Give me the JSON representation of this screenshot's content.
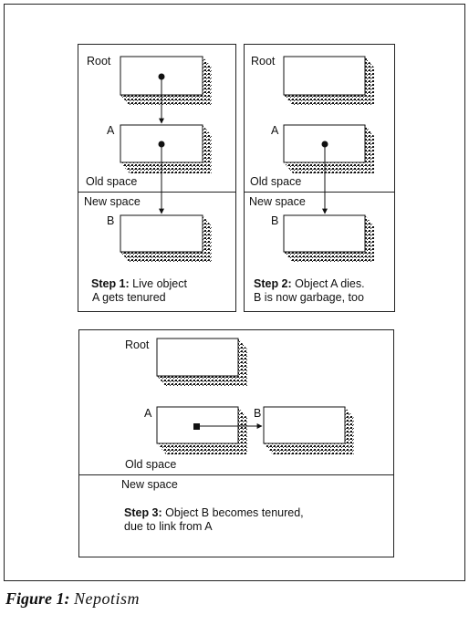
{
  "panels": [
    {
      "step_label": "Step 1:",
      "step_text_line1": "Live object",
      "step_text_line2": "A  gets tenured",
      "labels": {
        "root": "Root",
        "a": "A",
        "b": "B",
        "old_space": "Old space",
        "new_space": "New space"
      }
    },
    {
      "step_label": "Step 2:",
      "step_text_line1": "Object A dies.",
      "step_text_line2": "B is now garbage, too",
      "labels": {
        "root": "Root",
        "a": "A",
        "b": "B",
        "old_space": "Old space",
        "new_space": "New space"
      }
    },
    {
      "step_label": "Step 3:",
      "step_text_line1": "Object B becomes tenured,",
      "step_text_line2": "due to link from A",
      "labels": {
        "root": "Root",
        "a": "A",
        "b": "B",
        "old_space": "Old space",
        "new_space": "New space"
      }
    }
  ],
  "caption": {
    "figure": "Figure 1:",
    "title": "Nepotism"
  }
}
